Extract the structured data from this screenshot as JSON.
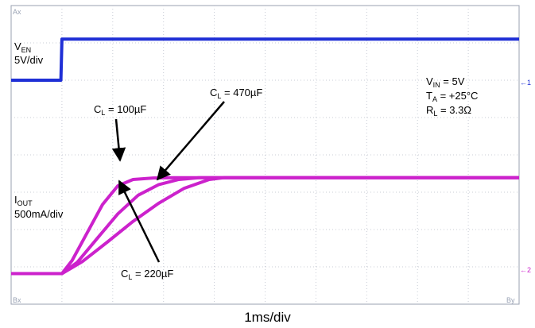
{
  "chart_data": {
    "type": "line",
    "title": "",
    "xlabel": "1ms/div",
    "ylabel": "",
    "grid": true,
    "divisions": {
      "x": 10,
      "y": 8
    },
    "x_units": "ms",
    "xlim": [
      0,
      10
    ],
    "corner_labels": {
      "top_left": "Ax",
      "bottom_left": "Bx",
      "bottom_right": "By"
    },
    "channel_markers": {
      "ch1": "1",
      "ch2": "2"
    },
    "conditions": [
      {
        "main": "V",
        "sub": "IN",
        "rest": " = 5V"
      },
      {
        "main": "T",
        "sub": "A",
        "rest": " = +25°C"
      },
      {
        "main": "R",
        "sub": "L",
        "rest": " = 3.3Ω"
      }
    ],
    "channels": [
      {
        "id": "ven",
        "label_main": "V",
        "label_sub": "EN",
        "scale": "5V/div",
        "color": "#1f2fd6",
        "x": [
          0,
          0.98,
          1.0,
          10
        ],
        "y_div": [
          6.0,
          6.0,
          7.1,
          7.1
        ]
      },
      {
        "id": "iout",
        "label_main": "I",
        "label_sub": "OUT",
        "scale": "500mA/div",
        "color": "#cc22cc",
        "series": [
          {
            "name": "CL = 100µF",
            "x": [
              0,
              1.0,
              1.2,
              1.5,
              1.8,
              2.1,
              2.4,
              2.8,
              3.2,
              10
            ],
            "y_div": [
              0.0,
              0.0,
              0.35,
              1.1,
              1.85,
              2.35,
              2.52,
              2.56,
              2.57,
              2.57
            ]
          },
          {
            "name": "CL = 220µF",
            "x": [
              0,
              1.0,
              1.3,
              1.7,
              2.1,
              2.5,
              2.9,
              3.3,
              3.7,
              10
            ],
            "y_div": [
              0.0,
              0.0,
              0.3,
              0.95,
              1.6,
              2.1,
              2.38,
              2.52,
              2.57,
              2.57
            ]
          },
          {
            "name": "CL = 470µF",
            "x": [
              0,
              1.0,
              1.4,
              1.9,
              2.4,
              2.9,
              3.4,
              3.9,
              4.2,
              10
            ],
            "y_div": [
              0.0,
              0.0,
              0.32,
              0.85,
              1.4,
              1.88,
              2.28,
              2.52,
              2.57,
              2.57
            ]
          }
        ]
      }
    ],
    "annotations": [
      {
        "main": "C",
        "sub": "L",
        "rest": " = 100µF",
        "series": "CL = 100µF"
      },
      {
        "main": "C",
        "sub": "L",
        "rest": " = 470µF",
        "series": "CL = 470µF"
      },
      {
        "main": "C",
        "sub": "L",
        "rest": " = 220µF",
        "series": "CL = 220µF"
      }
    ]
  }
}
